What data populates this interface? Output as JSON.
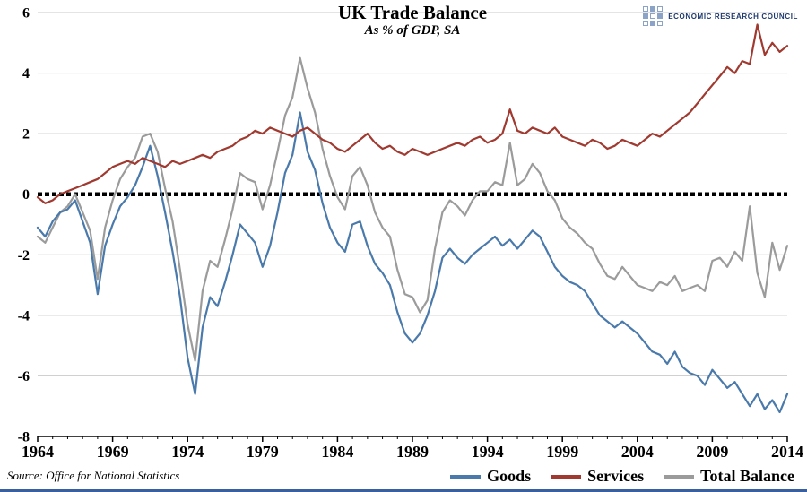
{
  "header": {
    "title": "UK Trade Balance",
    "subtitle": "As % of GDP, SA"
  },
  "logo": {
    "text": "ECONOMIC RESEARCH COUNCIL",
    "color": "#1f3a6e"
  },
  "source": "Source: Office for National Statistics",
  "footer_rule_color": "#3a5f9e",
  "chart_data": {
    "type": "line",
    "title": "UK Trade Balance",
    "subtitle": "As % of GDP, SA",
    "xlabel": "",
    "ylabel": "",
    "xlim": [
      1964,
      2014
    ],
    "ylim": [
      -8,
      6
    ],
    "x_ticks": [
      1964,
      1969,
      1974,
      1979,
      1984,
      1989,
      1994,
      1999,
      2004,
      2009,
      2014
    ],
    "y_ticks": [
      6,
      4,
      2,
      0,
      -2,
      -4,
      -6,
      -8
    ],
    "grid": true,
    "zero_line": "thick-black-dashed",
    "legend_position": "bottom",
    "x_start": 1964,
    "x_step": 0.5,
    "series": [
      {
        "name": "Goods",
        "color": "#4a7aab",
        "values": [
          -1.1,
          -1.4,
          -0.9,
          -0.6,
          -0.5,
          -0.2,
          -0.9,
          -1.6,
          -3.3,
          -1.7,
          -1.0,
          -0.4,
          -0.1,
          0.3,
          0.9,
          1.6,
          0.6,
          -0.6,
          -1.9,
          -3.4,
          -5.4,
          -6.6,
          -4.4,
          -3.4,
          -3.7,
          -2.9,
          -2.0,
          -1.0,
          -1.3,
          -1.6,
          -2.4,
          -1.7,
          -0.6,
          0.7,
          1.3,
          2.7,
          1.4,
          0.8,
          -0.3,
          -1.1,
          -1.6,
          -1.9,
          -1.0,
          -0.9,
          -1.7,
          -2.3,
          -2.6,
          -3.0,
          -3.9,
          -4.6,
          -4.9,
          -4.6,
          -4.0,
          -3.2,
          -2.1,
          -1.8,
          -2.1,
          -2.3,
          -2.0,
          -1.8,
          -1.6,
          -1.4,
          -1.7,
          -1.5,
          -1.8,
          -1.5,
          -1.2,
          -1.4,
          -1.9,
          -2.4,
          -2.7,
          -2.9,
          -3.0,
          -3.2,
          -3.6,
          -4.0,
          -4.2,
          -4.4,
          -4.2,
          -4.4,
          -4.6,
          -4.9,
          -5.2,
          -5.3,
          -5.6,
          -5.2,
          -5.7,
          -5.9,
          -6.0,
          -6.3,
          -5.8,
          -6.1,
          -6.4,
          -6.2,
          -6.6,
          -7.0,
          -6.6,
          -7.1,
          -6.8,
          -7.2,
          -6.6
        ]
      },
      {
        "name": "Services",
        "color": "#a03a30",
        "values": [
          -0.1,
          -0.3,
          -0.2,
          0.0,
          0.1,
          0.2,
          0.3,
          0.4,
          0.5,
          0.7,
          0.9,
          1.0,
          1.1,
          1.0,
          1.2,
          1.1,
          1.0,
          0.9,
          1.1,
          1.0,
          1.1,
          1.2,
          1.3,
          1.2,
          1.4,
          1.5,
          1.6,
          1.8,
          1.9,
          2.1,
          2.0,
          2.2,
          2.1,
          2.0,
          1.9,
          2.1,
          2.2,
          2.0,
          1.8,
          1.7,
          1.5,
          1.4,
          1.6,
          1.8,
          2.0,
          1.7,
          1.5,
          1.6,
          1.4,
          1.3,
          1.5,
          1.4,
          1.3,
          1.4,
          1.5,
          1.6,
          1.7,
          1.6,
          1.8,
          1.9,
          1.7,
          1.8,
          2.0,
          2.8,
          2.1,
          2.0,
          2.2,
          2.1,
          2.0,
          2.2,
          1.9,
          1.8,
          1.7,
          1.6,
          1.8,
          1.7,
          1.5,
          1.6,
          1.8,
          1.7,
          1.6,
          1.8,
          2.0,
          1.9,
          2.1,
          2.3,
          2.5,
          2.7,
          3.0,
          3.3,
          3.6,
          3.9,
          4.2,
          4.0,
          4.4,
          4.3,
          5.6,
          4.6,
          5.0,
          4.7,
          4.9
        ]
      },
      {
        "name": "Total Balance",
        "color": "#9b9b9b",
        "values": [
          -1.4,
          -1.6,
          -1.1,
          -0.6,
          -0.4,
          0.0,
          -0.6,
          -1.2,
          -2.8,
          -1.1,
          -0.2,
          0.5,
          0.9,
          1.2,
          1.9,
          2.0,
          1.4,
          0.2,
          -0.9,
          -2.5,
          -4.3,
          -5.5,
          -3.2,
          -2.2,
          -2.4,
          -1.5,
          -0.5,
          0.7,
          0.5,
          0.4,
          -0.5,
          0.3,
          1.4,
          2.6,
          3.2,
          4.5,
          3.5,
          2.7,
          1.5,
          0.6,
          -0.1,
          -0.5,
          0.6,
          0.9,
          0.3,
          -0.6,
          -1.1,
          -1.4,
          -2.5,
          -3.3,
          -3.4,
          -3.9,
          -3.5,
          -1.8,
          -0.6,
          -0.2,
          -0.4,
          -0.7,
          -0.2,
          0.1,
          0.1,
          0.4,
          0.3,
          1.7,
          0.3,
          0.5,
          1.0,
          0.7,
          0.1,
          -0.2,
          -0.8,
          -1.1,
          -1.3,
          -1.6,
          -1.8,
          -2.3,
          -2.7,
          -2.8,
          -2.4,
          -2.7,
          -3.0,
          -3.1,
          -3.2,
          -2.9,
          -3.0,
          -2.7,
          -3.2,
          -3.1,
          -3.0,
          -3.2,
          -2.2,
          -2.1,
          -2.4,
          -1.9,
          -2.2,
          -0.4,
          -2.6,
          -3.4,
          -1.6,
          -2.5,
          -1.7
        ]
      }
    ]
  }
}
